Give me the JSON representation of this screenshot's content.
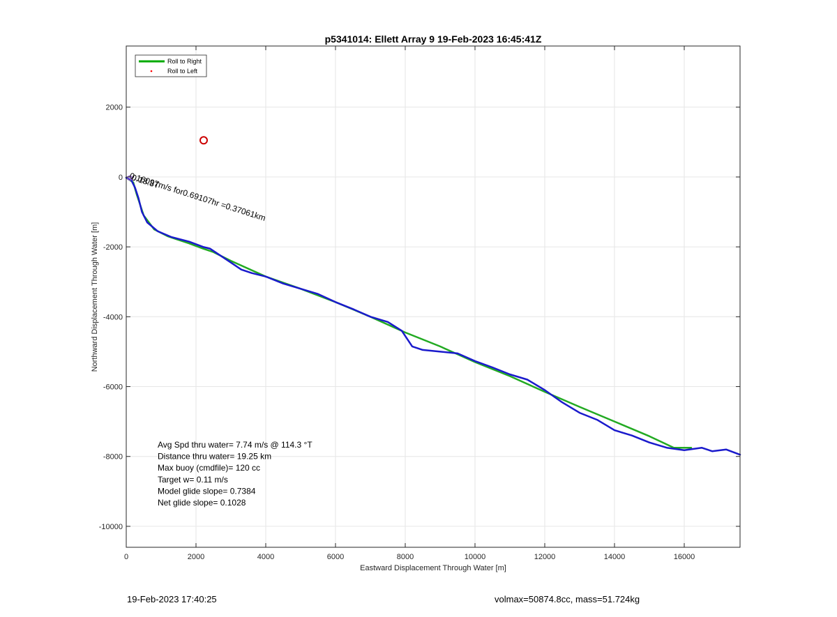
{
  "chart_data": {
    "type": "line",
    "title": "p5341014: Ellett Array 9 19-Feb-2023 16:45:41Z",
    "xlabel": "Eastward Displacement Through Water [m]",
    "ylabel": "Northward Displacement Through Water [m]",
    "xlim": [
      0,
      17600
    ],
    "ylim": [
      -10600,
      3750
    ],
    "xticks": [
      0,
      2000,
      4000,
      6000,
      8000,
      10000,
      12000,
      14000,
      16000
    ],
    "yticks": [
      2000,
      0,
      -2000,
      -4000,
      -6000,
      -8000,
      -10000
    ],
    "grid": true,
    "legend_position": "top-left",
    "legend": [
      {
        "label": "Roll to Right",
        "color": "#00aa00",
        "style": "line"
      },
      {
        "label": "Roll to Left",
        "color": "#ff0000",
        "style": "dot"
      }
    ],
    "series": [
      {
        "color": "#22aa22",
        "points": [
          [
            0,
            -20
          ],
          [
            200,
            -150
          ],
          [
            300,
            -500
          ],
          [
            500,
            -1100
          ],
          [
            800,
            -1500
          ],
          [
            1200,
            -1700
          ],
          [
            1800,
            -1900
          ],
          [
            2200,
            -2050
          ],
          [
            2500,
            -2150
          ],
          [
            3000,
            -2400
          ],
          [
            4000,
            -2850
          ],
          [
            5000,
            -3200
          ],
          [
            6000,
            -3580
          ],
          [
            7000,
            -4000
          ],
          [
            8000,
            -4450
          ],
          [
            9000,
            -4850
          ],
          [
            10000,
            -5300
          ],
          [
            11000,
            -5700
          ],
          [
            12000,
            -6150
          ],
          [
            13000,
            -6580
          ],
          [
            14000,
            -7000
          ],
          [
            15000,
            -7420
          ],
          [
            15700,
            -7750
          ],
          [
            16200,
            -7750
          ]
        ]
      },
      {
        "color": "#1a1acc",
        "points": [
          [
            0,
            -20
          ],
          [
            150,
            -100
          ],
          [
            250,
            -300
          ],
          [
            350,
            -600
          ],
          [
            450,
            -1000
          ],
          [
            600,
            -1300
          ],
          [
            900,
            -1550
          ],
          [
            1300,
            -1720
          ],
          [
            1800,
            -1850
          ],
          [
            2200,
            -2000
          ],
          [
            2400,
            -2050
          ],
          [
            2700,
            -2250
          ],
          [
            3000,
            -2450
          ],
          [
            3300,
            -2650
          ],
          [
            3600,
            -2750
          ],
          [
            4000,
            -2850
          ],
          [
            4500,
            -3050
          ],
          [
            5000,
            -3200
          ],
          [
            5500,
            -3350
          ],
          [
            6000,
            -3580
          ],
          [
            6500,
            -3780
          ],
          [
            7000,
            -4000
          ],
          [
            7500,
            -4150
          ],
          [
            7900,
            -4400
          ],
          [
            8200,
            -4850
          ],
          [
            8500,
            -4950
          ],
          [
            9000,
            -5000
          ],
          [
            9500,
            -5050
          ],
          [
            10000,
            -5270
          ],
          [
            10500,
            -5450
          ],
          [
            11000,
            -5650
          ],
          [
            11500,
            -5800
          ],
          [
            12000,
            -6100
          ],
          [
            12500,
            -6450
          ],
          [
            13000,
            -6750
          ],
          [
            13500,
            -6950
          ],
          [
            14000,
            -7250
          ],
          [
            14500,
            -7400
          ],
          [
            15000,
            -7600
          ],
          [
            15500,
            -7750
          ],
          [
            16000,
            -7820
          ],
          [
            16500,
            -7750
          ],
          [
            16800,
            -7850
          ],
          [
            17200,
            -7800
          ],
          [
            17600,
            -7950
          ]
        ]
      }
    ],
    "markers": [
      {
        "shape": "circle",
        "x": 2220,
        "y": 1050,
        "color": "#cc0000"
      },
      {
        "shape": "circle",
        "x": 100,
        "y": -30,
        "color": "#8855cc"
      }
    ],
    "annotations": [
      {
        "text": "0.16097m/s for0.69107hr =0.37061km",
        "x": 80,
        "y": -30,
        "rotation_deg": 17.6
      },
      {
        "text": "0.18.8T",
        "x": 140,
        "y": -80,
        "rotation_deg": 17.6
      }
    ],
    "stats": [
      "Avg Spd thru water=  7.74 m/s @ 114.3 °T",
      "Distance thru water= 19.25 km",
      "Max buoy (cmdfile)= 120 cc",
      "Target w= 0.11 m/s",
      "Model glide slope= 0.7384",
      "Net glide slope= 0.1028"
    ]
  },
  "footer": {
    "timestamp": "19-Feb-2023 17:40:25",
    "summary": "volmax=50874.8cc, mass=51.724kg"
  }
}
